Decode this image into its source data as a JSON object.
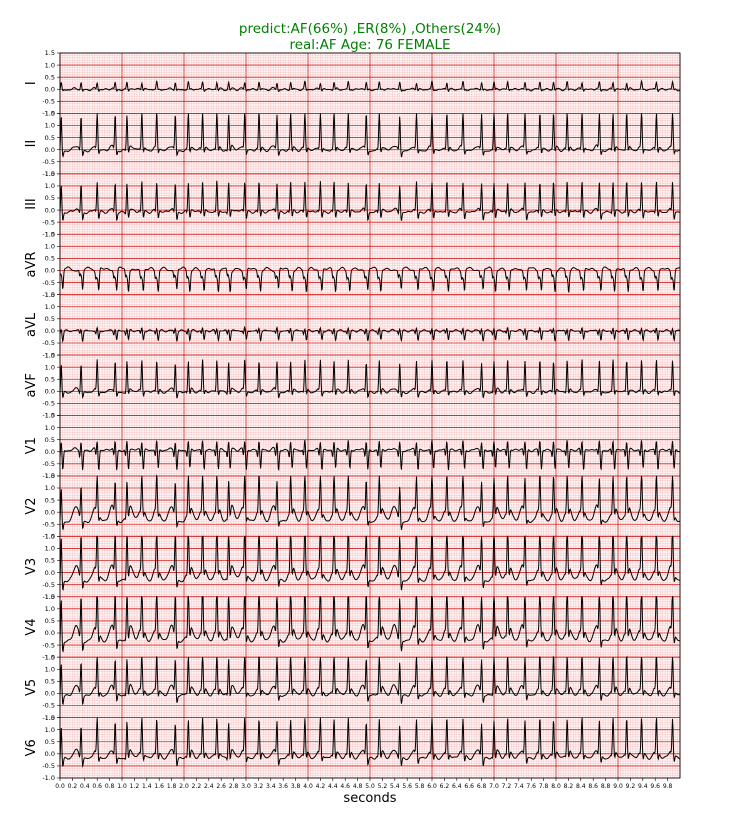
{
  "title": {
    "line1": "predict:AF(66%) ,ER(8%) ,Others(24%)",
    "line2": "real:AF  Age: 76 FEMALE"
  },
  "colors": {
    "title": "#008000",
    "grid_major": "#d62020",
    "grid_minor": "#f6b8b8",
    "trace": "#000000"
  },
  "chart_data": {
    "type": "line",
    "xlabel": "seconds",
    "xlim": [
      0.0,
      10.0
    ],
    "xticks": [
      "0.0",
      "0.2",
      "0.4",
      "0.6",
      "0.8",
      "1.0",
      "1.2",
      "1.4",
      "1.6",
      "1.8",
      "2.0",
      "2.2",
      "2.4",
      "2.6",
      "2.8",
      "3.0",
      "3.2",
      "3.4",
      "3.6",
      "3.8",
      "4.0",
      "4.2",
      "4.4",
      "4.6",
      "4.8",
      "5.0",
      "5.2",
      "5.4",
      "5.6",
      "5.8",
      "6.0",
      "6.2",
      "6.4",
      "6.6",
      "6.8",
      "7.0",
      "7.2",
      "7.4",
      "7.6",
      "7.8",
      "8.0",
      "8.2",
      "8.4",
      "8.6",
      "8.8",
      "9.0",
      "9.2",
      "9.4",
      "9.6",
      "9.8"
    ],
    "yticks": [
      "1.5",
      "1.0",
      "0.5",
      "0.0",
      "-0.5",
      "-1.0"
    ],
    "ylim": [
      -1.0,
      1.5
    ],
    "grid": true,
    "leads": [
      {
        "name": "I",
        "r": 0.25,
        "s": -0.08,
        "t": 0.05,
        "baseline": -0.02
      },
      {
        "name": "II",
        "r": 1.35,
        "s": -0.25,
        "t": 0.2,
        "baseline": -0.05
      },
      {
        "name": "III",
        "r": 1.05,
        "s": -0.35,
        "t": 0.12,
        "baseline": -0.1
      },
      {
        "name": "aVR",
        "r": -0.15,
        "s": -0.85,
        "t": -0.1,
        "baseline": 0.1
      },
      {
        "name": "aVL",
        "r": 0.1,
        "s": -0.4,
        "t": 0.02,
        "baseline": 0.0
      },
      {
        "name": "aVF",
        "r": 1.15,
        "s": -0.25,
        "t": 0.15,
        "baseline": -0.05
      },
      {
        "name": "V1",
        "r": 0.4,
        "s": -0.85,
        "t": 0.1,
        "baseline": 0.05
      },
      {
        "name": "V2",
        "r": 0.95,
        "s": -0.35,
        "t": 0.55,
        "baseline": -0.4
      },
      {
        "name": "V3",
        "r": 1.45,
        "s": -0.4,
        "t": 0.55,
        "baseline": -0.35
      },
      {
        "name": "V4",
        "r": 1.4,
        "s": -0.45,
        "t": 0.55,
        "baseline": -0.35
      },
      {
        "name": "V5",
        "r": 1.25,
        "s": -0.35,
        "t": 0.4,
        "baseline": -0.1
      },
      {
        "name": "V6",
        "r": 1.15,
        "s": -0.35,
        "t": 0.3,
        "baseline": -0.2
      }
    ],
    "beat_times": [
      0.02,
      0.34,
      0.6,
      0.89,
      1.08,
      1.32,
      1.56,
      1.86,
      2.07,
      2.3,
      2.53,
      2.72,
      2.98,
      3.21,
      3.5,
      3.72,
      3.95,
      4.2,
      4.42,
      4.65,
      4.94,
      5.15,
      5.48,
      5.75,
      6.0,
      6.24,
      6.5,
      6.8,
      7.0,
      7.22,
      7.5,
      7.74,
      7.96,
      8.18,
      8.42,
      8.7,
      8.92,
      9.14,
      9.38,
      9.62,
      9.88
    ]
  }
}
